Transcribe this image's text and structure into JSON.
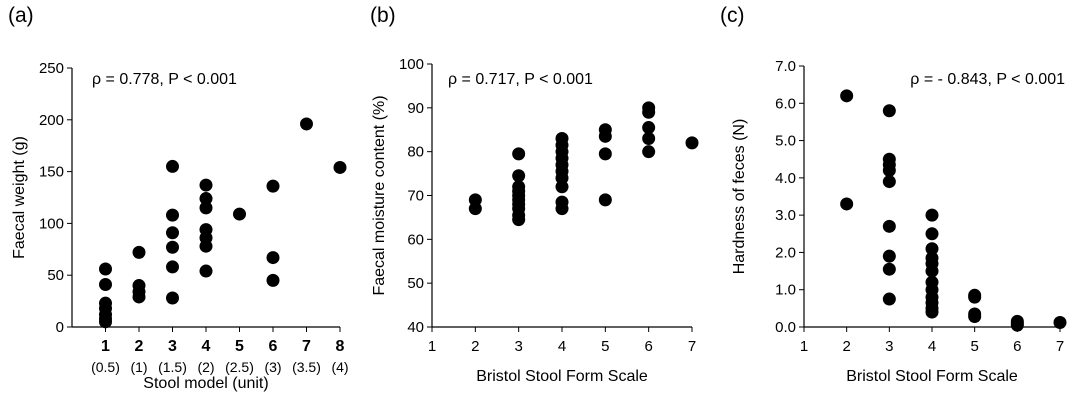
{
  "chart_data": [
    {
      "panel_label": "(a)",
      "type": "scatter",
      "annotation": "ρ = 0.778, P < 0.001",
      "xlabel": "Stool model (unit)",
      "ylabel": "Faecal weight (g)",
      "xlim": [
        0,
        8
      ],
      "ylim": [
        0,
        250
      ],
      "xticks": [
        {
          "v": 1,
          "label": "1",
          "sub": "(0.5)"
        },
        {
          "v": 2,
          "label": "2",
          "sub": "(1)"
        },
        {
          "v": 3,
          "label": "3",
          "sub": "(1.5)"
        },
        {
          "v": 4,
          "label": "4",
          "sub": "(2)"
        },
        {
          "v": 5,
          "label": "5",
          "sub": "(2.5)"
        },
        {
          "v": 6,
          "label": "6",
          "sub": "(3)"
        },
        {
          "v": 7,
          "label": "7",
          "sub": "(3.5)"
        },
        {
          "v": 8,
          "label": "8",
          "sub": "(4)"
        }
      ],
      "yticks": [
        {
          "v": 0,
          "label": "0"
        },
        {
          "v": 50,
          "label": "50"
        },
        {
          "v": 100,
          "label": "100"
        },
        {
          "v": 150,
          "label": "150"
        },
        {
          "v": 200,
          "label": "200"
        },
        {
          "v": 250,
          "label": "250"
        }
      ],
      "points": [
        [
          1,
          56
        ],
        [
          1,
          41
        ],
        [
          1,
          23
        ],
        [
          1,
          18
        ],
        [
          1,
          12
        ],
        [
          1,
          8
        ],
        [
          1,
          5
        ],
        [
          2,
          72
        ],
        [
          2,
          40
        ],
        [
          2,
          34
        ],
        [
          2,
          29
        ],
        [
          3,
          155
        ],
        [
          3,
          108
        ],
        [
          3,
          91
        ],
        [
          3,
          77
        ],
        [
          3,
          58
        ],
        [
          3,
          28
        ],
        [
          4,
          137
        ],
        [
          4,
          124
        ],
        [
          4,
          115
        ],
        [
          4,
          94
        ],
        [
          4,
          86
        ],
        [
          4,
          78
        ],
        [
          4,
          54
        ],
        [
          5,
          109
        ],
        [
          6,
          136
        ],
        [
          6,
          67
        ],
        [
          6,
          45
        ],
        [
          7,
          196
        ],
        [
          8,
          154
        ]
      ]
    },
    {
      "panel_label": "(b)",
      "type": "scatter",
      "annotation": "ρ = 0.717, P < 0.001",
      "xlabel": "Bristol Stool Form Scale",
      "ylabel": "Faecal moisture content (%)",
      "xlim": [
        1,
        7
      ],
      "ylim": [
        40,
        100
      ],
      "xticks": [
        {
          "v": 1,
          "label": "1"
        },
        {
          "v": 2,
          "label": "2"
        },
        {
          "v": 3,
          "label": "3"
        },
        {
          "v": 4,
          "label": "4"
        },
        {
          "v": 5,
          "label": "5"
        },
        {
          "v": 6,
          "label": "6"
        },
        {
          "v": 7,
          "label": "7"
        }
      ],
      "yticks": [
        {
          "v": 40,
          "label": "40"
        },
        {
          "v": 50,
          "label": "50"
        },
        {
          "v": 60,
          "label": "60"
        },
        {
          "v": 70,
          "label": "70"
        },
        {
          "v": 80,
          "label": "80"
        },
        {
          "v": 90,
          "label": "90"
        },
        {
          "v": 100,
          "label": "100"
        }
      ],
      "points": [
        [
          2,
          69
        ],
        [
          2,
          67
        ],
        [
          3,
          79.5
        ],
        [
          3,
          74.5
        ],
        [
          3,
          72
        ],
        [
          3,
          71
        ],
        [
          3,
          70
        ],
        [
          3,
          69
        ],
        [
          3,
          68
        ],
        [
          3,
          67
        ],
        [
          3,
          65.5
        ],
        [
          3,
          64.5
        ],
        [
          4,
          83
        ],
        [
          4,
          81.5
        ],
        [
          4,
          80
        ],
        [
          4,
          78.5
        ],
        [
          4,
          77
        ],
        [
          4,
          75.5
        ],
        [
          4,
          74
        ],
        [
          4,
          72
        ],
        [
          4,
          68.5
        ],
        [
          4,
          67
        ],
        [
          5,
          85
        ],
        [
          5,
          83.5
        ],
        [
          5,
          79.5
        ],
        [
          5,
          69
        ],
        [
          6,
          90
        ],
        [
          6,
          89
        ],
        [
          6,
          85.5
        ],
        [
          6,
          83
        ],
        [
          6,
          80
        ],
        [
          7,
          82
        ]
      ]
    },
    {
      "panel_label": "(c)",
      "type": "scatter",
      "annotation": "ρ = - 0.843, P < 0.001",
      "xlabel": "Bristol Stool  Form Scale",
      "ylabel": "Hardness of feces (N)",
      "xlim": [
        1,
        7
      ],
      "ylim": [
        0,
        7
      ],
      "xticks": [
        {
          "v": 1,
          "label": "1"
        },
        {
          "v": 2,
          "label": "2"
        },
        {
          "v": 3,
          "label": "3"
        },
        {
          "v": 4,
          "label": "4"
        },
        {
          "v": 5,
          "label": "5"
        },
        {
          "v": 6,
          "label": "6"
        },
        {
          "v": 7,
          "label": "7"
        }
      ],
      "yticks": [
        {
          "v": 0,
          "label": "0.0"
        },
        {
          "v": 1,
          "label": "1.0"
        },
        {
          "v": 2,
          "label": "2.0"
        },
        {
          "v": 3,
          "label": "3.0"
        },
        {
          "v": 4,
          "label": "4.0"
        },
        {
          "v": 5,
          "label": "5.0"
        },
        {
          "v": 6,
          "label": "6.0"
        },
        {
          "v": 7,
          "label": "7.0"
        }
      ],
      "points": [
        [
          2,
          6.2
        ],
        [
          2,
          3.3
        ],
        [
          3,
          5.8
        ],
        [
          3,
          4.5
        ],
        [
          3,
          4.35
        ],
        [
          3,
          4.2
        ],
        [
          3,
          3.9
        ],
        [
          3,
          2.7
        ],
        [
          3,
          1.9
        ],
        [
          3,
          1.55
        ],
        [
          3,
          0.75
        ],
        [
          4,
          3.0
        ],
        [
          4,
          2.5
        ],
        [
          4,
          2.1
        ],
        [
          4,
          1.85
        ],
        [
          4,
          1.7
        ],
        [
          4,
          1.5
        ],
        [
          4,
          1.2
        ],
        [
          4,
          1.0
        ],
        [
          4,
          0.8
        ],
        [
          4,
          0.65
        ],
        [
          4,
          0.5
        ],
        [
          4,
          0.4
        ],
        [
          5,
          0.85
        ],
        [
          5,
          0.8
        ],
        [
          5,
          0.35
        ],
        [
          5,
          0.28
        ],
        [
          6,
          0.15
        ],
        [
          6,
          0.1
        ],
        [
          6,
          0.05
        ],
        [
          7,
          0.12
        ]
      ]
    }
  ]
}
